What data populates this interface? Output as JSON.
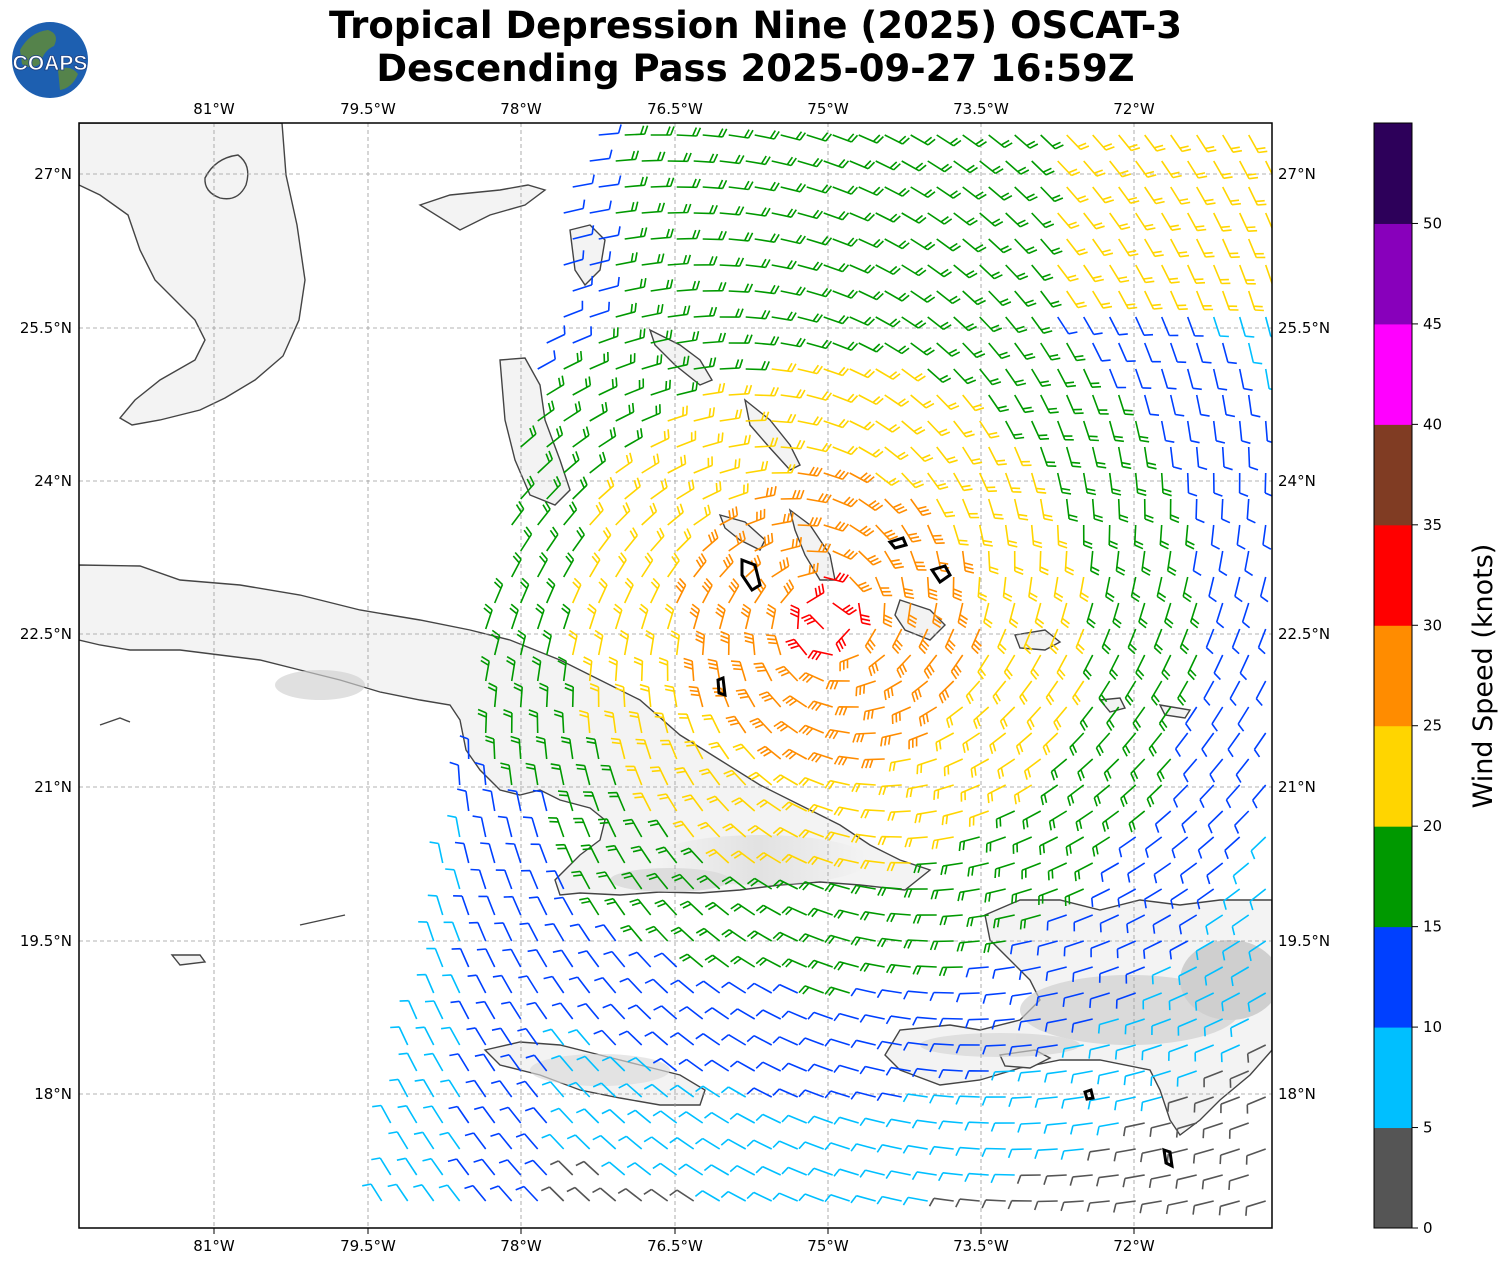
{
  "title": {
    "line1": "Tropical Depression Nine (2025) OSCAT-3",
    "line2": "Descending Pass 2025-09-27 16:59Z"
  },
  "logo": {
    "text": "COAPS",
    "colors": {
      "ocean": "#1d5fb0",
      "land": "#5f8a3a",
      "text": "#ffffff"
    }
  },
  "map": {
    "lon_ticks": [
      "81°W",
      "79.5°W",
      "78°W",
      "76.5°W",
      "75°W",
      "73.5°W",
      "72°W"
    ],
    "lat_ticks_left": [
      "27°N",
      "25.5°N",
      "24°N",
      "22.5°N",
      "21°N",
      "19.5°N",
      "18°N"
    ],
    "lat_ticks_right": [
      "27°N",
      "25.5°N",
      "24°N",
      "22.5°N",
      "21°N",
      "19.5°N",
      "18°N"
    ]
  },
  "colorbar": {
    "label": "Wind Speed (knots)",
    "ticks": [
      "0",
      "5",
      "10",
      "15",
      "20",
      "25",
      "30",
      "35",
      "40",
      "45",
      "50"
    ],
    "colors": [
      "#555555",
      "#00bfff",
      "#0040ff",
      "#009900",
      "#ffd500",
      "#ff8c00",
      "#ff0000",
      "#803c23",
      "#ff00ff",
      "#8800bb",
      "#2d005a"
    ]
  }
}
